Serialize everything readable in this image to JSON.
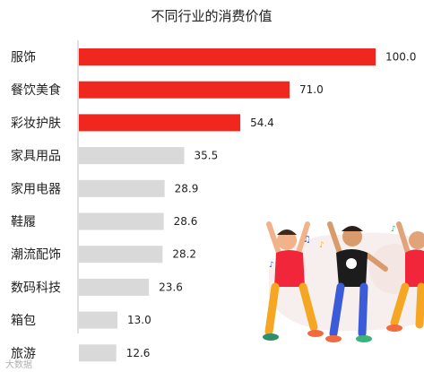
{
  "chart_data": {
    "type": "bar",
    "orientation": "horizontal",
    "title": "不同行业的消费价值",
    "categories": [
      "服饰",
      "餐饮美食",
      "彩妆护肤",
      "家具用品",
      "家用电器",
      "鞋履",
      "潮流配饰",
      "数码科技",
      "箱包",
      "旅游"
    ],
    "values": [
      100.0,
      71.0,
      54.4,
      35.5,
      28.9,
      28.6,
      28.2,
      23.6,
      13.0,
      12.6
    ],
    "value_labels": [
      "100.0",
      "71.0",
      "54.4",
      "35.5",
      "28.9",
      "28.6",
      "28.2",
      "23.6",
      "13.0",
      "12.6"
    ],
    "highlight_count": 3,
    "colors": {
      "highlight": "#f0271f",
      "normal": "#d9d9d9",
      "axis": "#bfbfbf",
      "text": "#222222"
    },
    "xlim": [
      0,
      100
    ],
    "grid": false,
    "legend": "none"
  },
  "decoration": {
    "illustration": "dancing-people-illustration"
  },
  "watermark": "大数据"
}
